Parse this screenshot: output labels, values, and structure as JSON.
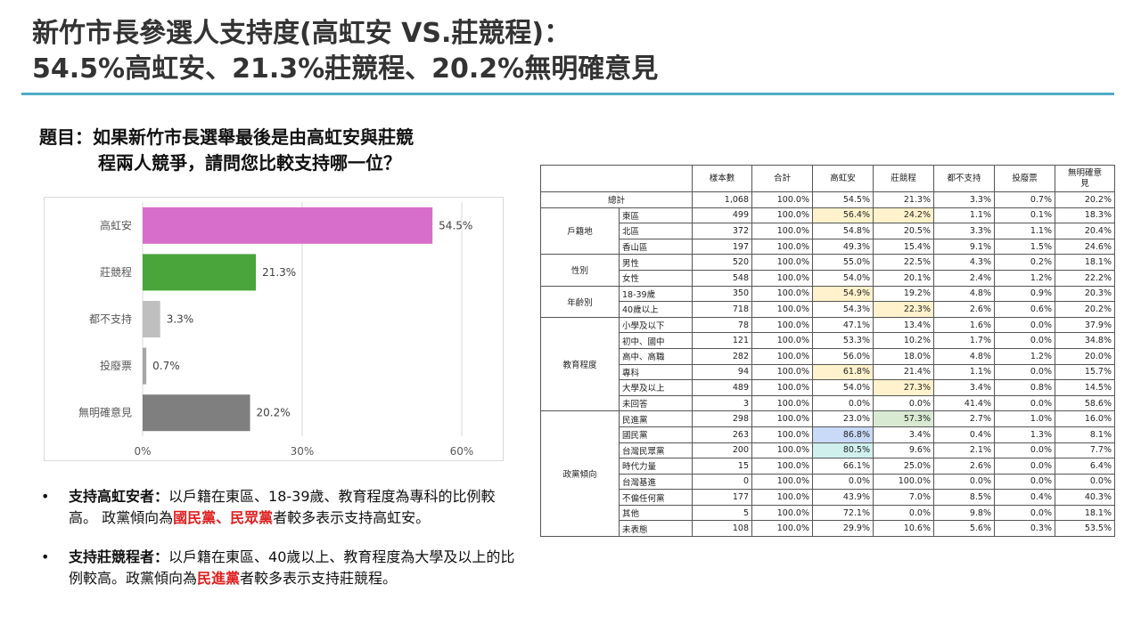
{
  "title": {
    "line1": "新竹市長參選人支持度(高虹安 VS.莊競程)：",
    "line2": "54.5%高虹安、21.3%莊競程、20.2%無明確意見"
  },
  "question": {
    "line1": "題目：如果新竹市長選舉最後是由高虹安與莊競",
    "line2": "程兩人競爭，請問您比較支持哪一位？"
  },
  "colors": {
    "accent": "#4bacc6",
    "emphasis": "#e02020"
  },
  "chart_data": {
    "type": "bar",
    "orientation": "horizontal",
    "categories": [
      "高虹安",
      "莊競程",
      "都不支持",
      "投廢票",
      "無明確意見"
    ],
    "values": [
      54.5,
      21.3,
      3.3,
      0.7,
      20.2
    ],
    "value_labels": [
      "54.5%",
      "21.3%",
      "3.3%",
      "0.7%",
      "20.2%"
    ],
    "colors": [
      "#d86ecc",
      "#4aa53a",
      "#bfbfbf",
      "#a6a6a6",
      "#7f7f7f"
    ],
    "xlim": [
      0,
      60
    ],
    "xticks": [
      0,
      30,
      60
    ],
    "xtick_labels": [
      "0%",
      "30%",
      "60%"
    ],
    "grid": true
  },
  "bullets": [
    {
      "bold": "支持高虹安者：",
      "text1": "以戶籍在東區、18-39歲、教育程度為專科的比例較高。 政黨傾向為",
      "red": "國民黨、民眾黨",
      "text2": "者較多表示支持高虹安。"
    },
    {
      "bold": "支持莊競程者：",
      "text1": "以戶籍在東區、40歲以上、教育程度為大學及以上的比例較高。政黨傾向為",
      "red": "民進黨",
      "text2": "者較多表示支持莊競程。"
    }
  ],
  "table": {
    "headers": [
      "樣本數",
      "合計",
      "高虹安",
      "莊競程",
      "都不支持",
      "投廢票",
      "無明確意見"
    ],
    "total": {
      "label": "總計",
      "values": [
        "1,068",
        "100.0%",
        "54.5%",
        "21.3%",
        "3.3%",
        "0.7%",
        "20.2%"
      ]
    },
    "groups": [
      {
        "name": "戶籍地",
        "rows": [
          {
            "label": "東區",
            "values": [
              "499",
              "100.0%",
              "56.4%",
              "24.2%",
              "1.1%",
              "0.1%",
              "18.3%"
            ],
            "hl": [
              "",
              "",
              "y",
              "y",
              "",
              "",
              ""
            ]
          },
          {
            "label": "北區",
            "values": [
              "372",
              "100.0%",
              "54.8%",
              "20.5%",
              "3.3%",
              "1.1%",
              "20.4%"
            ],
            "hl": [
              "",
              "",
              "",
              "",
              "",
              "",
              ""
            ]
          },
          {
            "label": "香山區",
            "values": [
              "197",
              "100.0%",
              "49.3%",
              "15.4%",
              "9.1%",
              "1.5%",
              "24.6%"
            ],
            "hl": [
              "",
              "",
              "",
              "",
              "",
              "",
              ""
            ]
          }
        ]
      },
      {
        "name": "性別",
        "rows": [
          {
            "label": "男性",
            "values": [
              "520",
              "100.0%",
              "55.0%",
              "22.5%",
              "4.3%",
              "0.2%",
              "18.1%"
            ],
            "hl": [
              "",
              "",
              "",
              "",
              "",
              "",
              ""
            ]
          },
          {
            "label": "女性",
            "values": [
              "548",
              "100.0%",
              "54.0%",
              "20.1%",
              "2.4%",
              "1.2%",
              "22.2%"
            ],
            "hl": [
              "",
              "",
              "",
              "",
              "",
              "",
              ""
            ]
          }
        ]
      },
      {
        "name": "年齡別",
        "rows": [
          {
            "label": "18-39歲",
            "values": [
              "350",
              "100.0%",
              "54.9%",
              "19.2%",
              "4.8%",
              "0.9%",
              "20.3%"
            ],
            "hl": [
              "",
              "",
              "y",
              "",
              "",
              "",
              ""
            ]
          },
          {
            "label": "40歲以上",
            "values": [
              "718",
              "100.0%",
              "54.3%",
              "22.3%",
              "2.6%",
              "0.6%",
              "20.2%"
            ],
            "hl": [
              "",
              "",
              "",
              "y",
              "",
              "",
              ""
            ]
          }
        ]
      },
      {
        "name": "教育程度",
        "rows": [
          {
            "label": "小學及以下",
            "values": [
              "78",
              "100.0%",
              "47.1%",
              "13.4%",
              "1.6%",
              "0.0%",
              "37.9%"
            ],
            "hl": [
              "",
              "",
              "",
              "",
              "",
              "",
              ""
            ]
          },
          {
            "label": "初中、國中",
            "values": [
              "121",
              "100.0%",
              "53.3%",
              "10.2%",
              "1.7%",
              "0.0%",
              "34.8%"
            ],
            "hl": [
              "",
              "",
              "",
              "",
              "",
              "",
              ""
            ]
          },
          {
            "label": "高中、高職",
            "values": [
              "282",
              "100.0%",
              "56.0%",
              "18.0%",
              "4.8%",
              "1.2%",
              "20.0%"
            ],
            "hl": [
              "",
              "",
              "",
              "",
              "",
              "",
              ""
            ]
          },
          {
            "label": "專科",
            "values": [
              "94",
              "100.0%",
              "61.8%",
              "21.4%",
              "1.1%",
              "0.0%",
              "15.7%"
            ],
            "hl": [
              "",
              "",
              "y",
              "",
              "",
              "",
              ""
            ]
          },
          {
            "label": "大學及以上",
            "values": [
              "489",
              "100.0%",
              "54.0%",
              "27.3%",
              "3.4%",
              "0.8%",
              "14.5%"
            ],
            "hl": [
              "",
              "",
              "",
              "y",
              "",
              "",
              ""
            ]
          },
          {
            "label": "未回答",
            "values": [
              "3",
              "100.0%",
              "0.0%",
              "0.0%",
              "41.4%",
              "0.0%",
              "58.6%"
            ],
            "hl": [
              "",
              "",
              "",
              "",
              "",
              "",
              ""
            ]
          }
        ]
      },
      {
        "name": "政黨傾向",
        "rows": [
          {
            "label": "民進黨",
            "values": [
              "298",
              "100.0%",
              "23.0%",
              "57.3%",
              "2.7%",
              "1.0%",
              "16.0%"
            ],
            "hl": [
              "",
              "",
              "",
              "g",
              "",
              "",
              ""
            ]
          },
          {
            "label": "國民黨",
            "values": [
              "263",
              "100.0%",
              "86.8%",
              "3.4%",
              "0.4%",
              "1.3%",
              "8.1%"
            ],
            "hl": [
              "",
              "",
              "b",
              "",
              "",
              "",
              ""
            ]
          },
          {
            "label": "台灣民眾黨",
            "values": [
              "200",
              "100.0%",
              "80.5%",
              "9.6%",
              "2.1%",
              "0.0%",
              "7.7%"
            ],
            "hl": [
              "",
              "",
              "c",
              "",
              "",
              "",
              ""
            ]
          },
          {
            "label": "時代力量",
            "values": [
              "15",
              "100.0%",
              "66.1%",
              "25.0%",
              "2.6%",
              "0.0%",
              "6.4%"
            ],
            "hl": [
              "",
              "",
              "",
              "",
              "",
              "",
              ""
            ]
          },
          {
            "label": "台灣基進",
            "values": [
              "0",
              "100.0%",
              "0.0%",
              "100.0%",
              "0.0%",
              "0.0%",
              "0.0%"
            ],
            "hl": [
              "",
              "",
              "",
              "",
              "",
              "",
              ""
            ]
          },
          {
            "label": "不偏任何黨",
            "values": [
              "177",
              "100.0%",
              "43.9%",
              "7.0%",
              "8.5%",
              "0.4%",
              "40.3%"
            ],
            "hl": [
              "",
              "",
              "",
              "",
              "",
              "",
              ""
            ]
          },
          {
            "label": "其他",
            "values": [
              "5",
              "100.0%",
              "72.1%",
              "0.0%",
              "9.8%",
              "0.0%",
              "18.1%"
            ],
            "hl": [
              "",
              "",
              "",
              "",
              "",
              "",
              ""
            ]
          },
          {
            "label": "未表態",
            "values": [
              "108",
              "100.0%",
              "29.9%",
              "10.6%",
              "5.6%",
              "0.3%",
              "53.5%"
            ],
            "hl": [
              "",
              "",
              "",
              "",
              "",
              "",
              ""
            ]
          }
        ]
      }
    ]
  }
}
